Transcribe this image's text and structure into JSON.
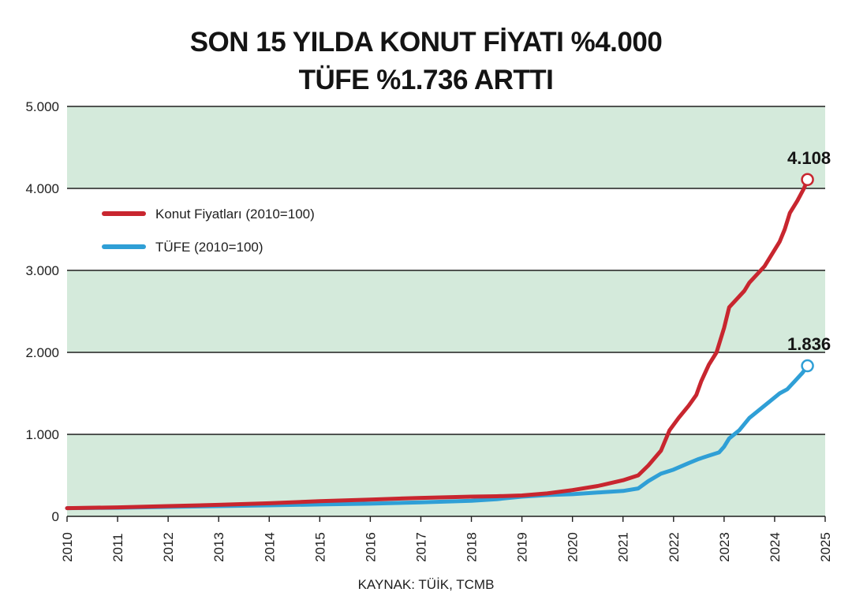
{
  "title_line1": "SON 15 YILDA KONUT FİYATI %4.000",
  "title_line2": "TÜFE %1.736 ARTTI",
  "source": "KAYNAK: TÜİK, TCMB",
  "colors": {
    "band": "#d4eadb",
    "konut": "#c8262f",
    "tufe": "#2f9fd6",
    "grid": "#1e1e1e"
  },
  "chart_data": {
    "type": "line",
    "xlim": [
      2010,
      2025
    ],
    "ylim": [
      0,
      5000
    ],
    "yticks": [
      0,
      1000,
      2000,
      3000,
      4000,
      5000
    ],
    "ytick_labels": [
      "0",
      "1.000",
      "2.000",
      "3.000",
      "4.000",
      "5.000"
    ],
    "xticks": [
      "2010",
      "2011",
      "2012",
      "2013",
      "2014",
      "2015",
      "2016",
      "2017",
      "2018",
      "2019",
      "2020",
      "2021",
      "2022",
      "2023",
      "2024",
      "2025"
    ],
    "legend_position": "top-left",
    "series": [
      {
        "name": "Konut Fiyatları (2010=100)",
        "color": "#c8262f",
        "end_label": "4.108",
        "points": [
          [
            2010,
            100
          ],
          [
            2011,
            110
          ],
          [
            2012,
            125
          ],
          [
            2013,
            140
          ],
          [
            2014,
            160
          ],
          [
            2015,
            185
          ],
          [
            2016,
            205
          ],
          [
            2017,
            225
          ],
          [
            2018,
            240
          ],
          [
            2018.5,
            245
          ],
          [
            2019,
            255
          ],
          [
            2019.5,
            280
          ],
          [
            2020,
            320
          ],
          [
            2020.5,
            370
          ],
          [
            2021,
            440
          ],
          [
            2021.3,
            500
          ],
          [
            2021.5,
            620
          ],
          [
            2021.75,
            800
          ],
          [
            2021.92,
            1050
          ],
          [
            2022.1,
            1200
          ],
          [
            2022.3,
            1350
          ],
          [
            2022.45,
            1480
          ],
          [
            2022.55,
            1650
          ],
          [
            2022.7,
            1850
          ],
          [
            2022.85,
            2000
          ],
          [
            2023,
            2300
          ],
          [
            2023.1,
            2550
          ],
          [
            2023.25,
            2650
          ],
          [
            2023.4,
            2750
          ],
          [
            2023.5,
            2850
          ],
          [
            2023.65,
            2950
          ],
          [
            2023.8,
            3050
          ],
          [
            2023.95,
            3200
          ],
          [
            2024.1,
            3350
          ],
          [
            2024.2,
            3500
          ],
          [
            2024.3,
            3700
          ],
          [
            2024.45,
            3850
          ],
          [
            2024.58,
            4000
          ],
          [
            2024.65,
            4108
          ]
        ]
      },
      {
        "name": "TÜFE (2010=100)",
        "color": "#2f9fd6",
        "end_label": "1.836",
        "points": [
          [
            2010,
            100
          ],
          [
            2011,
            105
          ],
          [
            2012,
            115
          ],
          [
            2013,
            125
          ],
          [
            2014,
            135
          ],
          [
            2015,
            145
          ],
          [
            2016,
            155
          ],
          [
            2017,
            170
          ],
          [
            2018,
            190
          ],
          [
            2018.5,
            210
          ],
          [
            2019,
            240
          ],
          [
            2019.5,
            260
          ],
          [
            2020,
            270
          ],
          [
            2020.5,
            290
          ],
          [
            2021,
            310
          ],
          [
            2021.3,
            340
          ],
          [
            2021.5,
            430
          ],
          [
            2021.75,
            520
          ],
          [
            2022,
            570
          ],
          [
            2022.3,
            650
          ],
          [
            2022.5,
            700
          ],
          [
            2022.7,
            740
          ],
          [
            2022.9,
            780
          ],
          [
            2023,
            850
          ],
          [
            2023.1,
            950
          ],
          [
            2023.3,
            1050
          ],
          [
            2023.5,
            1200
          ],
          [
            2023.7,
            1300
          ],
          [
            2023.9,
            1400
          ],
          [
            2024.1,
            1500
          ],
          [
            2024.25,
            1550
          ],
          [
            2024.4,
            1650
          ],
          [
            2024.55,
            1750
          ],
          [
            2024.65,
            1836
          ]
        ]
      }
    ]
  }
}
